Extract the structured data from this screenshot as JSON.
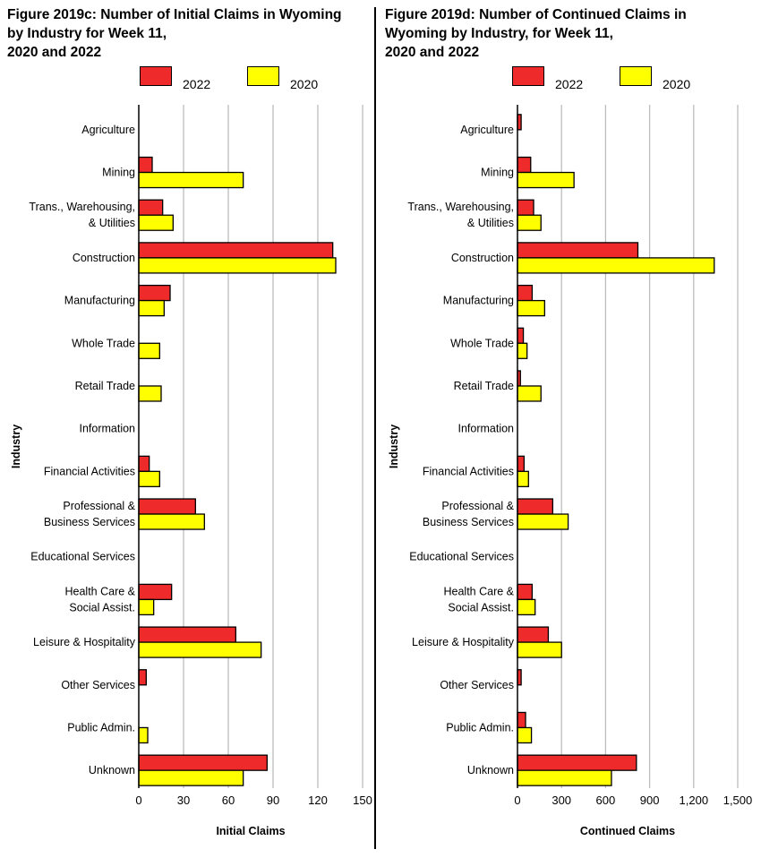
{
  "chart_data": [
    {
      "type": "bar",
      "orientation": "horizontal",
      "title": "Figure 2019c: Number of Initial Claims in Wyoming\nby Industry for Week 11,\n2020 and 2022",
      "xlabel": "Initial Claims",
      "ylabel": "Industry",
      "xlim": [
        0,
        150
      ],
      "xticks": [
        "0",
        "30",
        "60",
        "90",
        "120",
        "150"
      ],
      "xtick_values": [
        0,
        30,
        60,
        90,
        120,
        150
      ],
      "grid": true,
      "legend_position": "top",
      "categories": [
        "Agriculture",
        "Mining",
        "Trans., Warehousing,\n& Utilities",
        "Construction",
        "Manufacturing",
        "Whole Trade",
        "Retail Trade",
        "Information",
        "Financial Activities",
        "Professional &\nBusiness Services",
        "Educational Services",
        "Health Care &\nSocial Assist.",
        "Leisure & Hospitality",
        "Other Services",
        "Public Admin.",
        "Unknown"
      ],
      "series": [
        {
          "name": "2022",
          "color": "#ee2a2a",
          "values": [
            0,
            9,
            16,
            130,
            21,
            0,
            0,
            0,
            7,
            38,
            0,
            22,
            65,
            5,
            0,
            86
          ]
        },
        {
          "name": "2020",
          "color": "#ffff00",
          "values": [
            0,
            70,
            23,
            132,
            17,
            14,
            15,
            0,
            14,
            44,
            0,
            10,
            82,
            0,
            6,
            70
          ]
        }
      ]
    },
    {
      "type": "bar",
      "orientation": "horizontal",
      "title": "Figure 2019d: Number of Continued Claims in\nWyoming by Industry, for Week 11,\n2020 and 2022",
      "xlabel": "Continued Claims",
      "ylabel": "Industry",
      "xlim": [
        0,
        1500
      ],
      "xticks": [
        "0",
        "300",
        "600",
        "900",
        "1,200",
        "1,500"
      ],
      "xtick_values": [
        0,
        300,
        600,
        900,
        1200,
        1500
      ],
      "grid": true,
      "legend_position": "top",
      "categories": [
        "Agriculture",
        "Mining",
        "Trans., Warehousing,\n& Utilities",
        "Construction",
        "Manufacturing",
        "Whole Trade",
        "Retail Trade",
        "Information",
        "Financial Activities",
        "Professional &\nBusiness Services",
        "Educational Services",
        "Health Care &\nSocial Assist.",
        "Leisure & Hospitality",
        "Other Services",
        "Public Admin.",
        "Unknown"
      ],
      "series": [
        {
          "name": "2022",
          "color": "#ee2a2a",
          "values": [
            25,
            90,
            110,
            820,
            100,
            40,
            20,
            0,
            45,
            240,
            0,
            100,
            210,
            25,
            55,
            810
          ]
        },
        {
          "name": "2020",
          "color": "#ffff00",
          "values": [
            0,
            385,
            160,
            1340,
            185,
            65,
            160,
            0,
            75,
            345,
            0,
            120,
            300,
            0,
            95,
            640
          ]
        }
      ]
    }
  ]
}
